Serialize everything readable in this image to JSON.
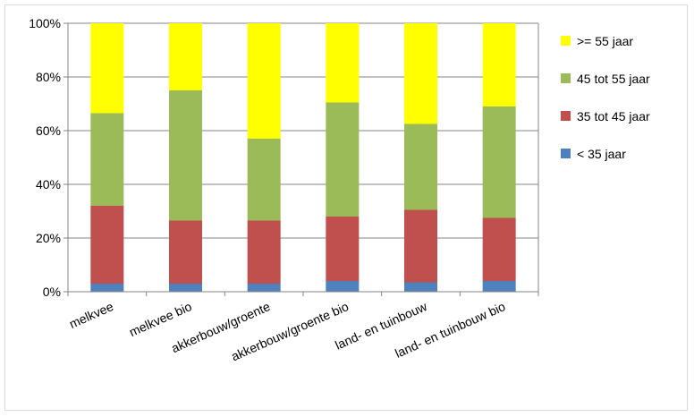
{
  "chart_data": {
    "type": "bar",
    "stacked": true,
    "percent": true,
    "title": "",
    "xlabel": "",
    "ylabel": "",
    "ylim": [
      0,
      100
    ],
    "yticks": [
      "0%",
      "20%",
      "40%",
      "60%",
      "80%",
      "100%"
    ],
    "grid": true,
    "legend_position": "right",
    "categories": [
      "melkvee",
      "melkvee bio",
      "akkerbouw/groente",
      "akkerbouw/groente bio",
      "land- en tuinbouw",
      "land- en tuinbouw bio"
    ],
    "series": [
      {
        "name": "< 35 jaar",
        "color": "#4f81bd",
        "values": [
          3,
          3,
          3,
          4,
          3.5,
          4
        ]
      },
      {
        "name": "35 tot 45 jaar",
        "color": "#c0504d",
        "values": [
          29,
          23.5,
          23.5,
          24,
          27,
          23.5
        ]
      },
      {
        "name": "45 tot 55 jaar",
        "color": "#9bbb59",
        "values": [
          34.5,
          48.5,
          30.5,
          42.5,
          32,
          41.5
        ]
      },
      {
        "name": ">= 55 jaar",
        "color": "#ffff00",
        "values": [
          33.5,
          25,
          43,
          29.5,
          37.5,
          31
        ]
      }
    ]
  }
}
